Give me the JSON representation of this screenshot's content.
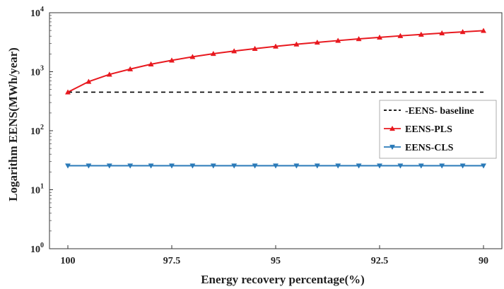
{
  "chart_data": {
    "type": "line",
    "title": "",
    "xlabel": "Energy recovery percentage(%)",
    "ylabel": "Logarithm EENS(MWh/year)",
    "yscale": "log",
    "ylim": [
      1,
      10000
    ],
    "xlim": [
      100,
      90
    ],
    "x_reversed": true,
    "x_ticks": [
      100,
      97.5,
      95,
      92.5,
      90
    ],
    "x_tick_labels": [
      "100",
      "97.5",
      "95",
      "92.5",
      "90"
    ],
    "y_ticks": [
      1,
      10,
      100,
      1000,
      10000
    ],
    "y_tick_labels": [
      {
        "base": "10",
        "exp": "0"
      },
      {
        "base": "10",
        "exp": "1"
      },
      {
        "base": "10",
        "exp": "2"
      },
      {
        "base": "10",
        "exp": "3"
      },
      {
        "base": "10",
        "exp": "4"
      }
    ],
    "grid": false,
    "legend_position": "right",
    "x": [
      100,
      99.5,
      99,
      98.5,
      98,
      97.5,
      97,
      96.5,
      96,
      95.5,
      95,
      94.5,
      94,
      93.5,
      93,
      92.5,
      92,
      91.5,
      91,
      90.5,
      90
    ],
    "series": [
      {
        "name": "-EENS- baseline",
        "color": "#000000",
        "style": "dashed",
        "marker": "none",
        "values": [
          450,
          450,
          450,
          450,
          450,
          450,
          450,
          450,
          450,
          450,
          450,
          450,
          450,
          450,
          450,
          450,
          450,
          450,
          450,
          450,
          450
        ]
      },
      {
        "name": "EENS-PLS",
        "color": "#e8191f",
        "style": "solid",
        "marker": "triangle-up",
        "values": [
          450,
          680,
          900,
          1110,
          1340,
          1560,
          1790,
          2020,
          2240,
          2460,
          2690,
          2920,
          3140,
          3370,
          3600,
          3820,
          4060,
          4280,
          4510,
          4740,
          4960
        ]
      },
      {
        "name": "EENS-CLS",
        "color": "#2a7ab8",
        "style": "solid",
        "marker": "triangle-down",
        "values": [
          25.5,
          25.5,
          25.5,
          25.5,
          25.5,
          25.5,
          25.5,
          25.5,
          25.5,
          25.5,
          25.5,
          25.5,
          25.5,
          25.5,
          25.5,
          25.5,
          25.5,
          25.5,
          25.5,
          25.5,
          25.5
        ]
      }
    ]
  }
}
